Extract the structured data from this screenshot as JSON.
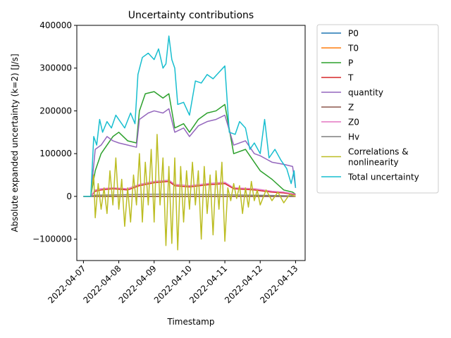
{
  "chart_data": {
    "type": "line",
    "title": "Uncertainty contributions",
    "xlabel": "Timestamp",
    "ylabel": "Absolute expanded uncertainty (k=2) [J/s]",
    "x_range": [
      "2022-04-06T19:30",
      "2022-04-13T06:30"
    ],
    "ylim": [
      -150000,
      400000
    ],
    "x_ticks": [
      "2022-04-07",
      "2022-04-08",
      "2022-04-09",
      "2022-04-10",
      "2022-04-11",
      "2022-04-12",
      "2022-04-13"
    ],
    "y_ticks": [
      -100000,
      0,
      100000,
      200000,
      300000,
      400000
    ],
    "y_tick_labels": [
      "−100000",
      "0",
      "100000",
      "200000",
      "300000",
      "400000"
    ],
    "grid": false,
    "legend_position": "outside-right",
    "series": [
      {
        "name": "P0",
        "color": "#1f77b4",
        "points": [
          [
            "2022-04-07T00:00",
            0
          ],
          [
            "2022-04-13T00:00",
            0
          ]
        ]
      },
      {
        "name": "T0",
        "color": "#ff7f0e",
        "points": [
          [
            "2022-04-07T00:00",
            0
          ],
          [
            "2022-04-13T00:00",
            0
          ]
        ]
      },
      {
        "name": "P",
        "color": "#2ca02c",
        "points": [
          [
            "2022-04-07T00:00",
            0
          ],
          [
            "2022-04-07T05:00",
            0
          ],
          [
            "2022-04-07T08:00",
            60000
          ],
          [
            "2022-04-07T12:00",
            100000
          ],
          [
            "2022-04-07T16:00",
            120000
          ],
          [
            "2022-04-07T20:00",
            140000
          ],
          [
            "2022-04-08T00:00",
            150000
          ],
          [
            "2022-04-08T06:00",
            130000
          ],
          [
            "2022-04-08T12:00",
            125000
          ],
          [
            "2022-04-08T14:00",
            200000
          ],
          [
            "2022-04-08T18:00",
            240000
          ],
          [
            "2022-04-09T00:00",
            245000
          ],
          [
            "2022-04-09T06:00",
            230000
          ],
          [
            "2022-04-09T10:00",
            240000
          ],
          [
            "2022-04-09T14:00",
            160000
          ],
          [
            "2022-04-09T20:00",
            170000
          ],
          [
            "2022-04-10T00:00",
            150000
          ],
          [
            "2022-04-10T06:00",
            180000
          ],
          [
            "2022-04-10T12:00",
            195000
          ],
          [
            "2022-04-10T18:00",
            200000
          ],
          [
            "2022-04-11T00:00",
            215000
          ],
          [
            "2022-04-11T06:00",
            100000
          ],
          [
            "2022-04-11T14:00",
            110000
          ],
          [
            "2022-04-11T20:00",
            80000
          ],
          [
            "2022-04-12T00:00",
            60000
          ],
          [
            "2022-04-12T08:00",
            40000
          ],
          [
            "2022-04-12T16:00",
            15000
          ],
          [
            "2022-04-12T22:00",
            10000
          ],
          [
            "2022-04-13T00:00",
            5000
          ]
        ]
      },
      {
        "name": "T",
        "color": "#d62728",
        "points": [
          [
            "2022-04-07T00:00",
            0
          ],
          [
            "2022-04-07T05:00",
            0
          ],
          [
            "2022-04-07T08:00",
            12000
          ],
          [
            "2022-04-07T12:00",
            15000
          ],
          [
            "2022-04-07T20:00",
            18000
          ],
          [
            "2022-04-08T06:00",
            15000
          ],
          [
            "2022-04-08T14:00",
            25000
          ],
          [
            "2022-04-09T00:00",
            32000
          ],
          [
            "2022-04-09T10:00",
            35000
          ],
          [
            "2022-04-09T14:00",
            25000
          ],
          [
            "2022-04-10T00:00",
            22000
          ],
          [
            "2022-04-10T12:00",
            27000
          ],
          [
            "2022-04-11T00:00",
            30000
          ],
          [
            "2022-04-11T06:00",
            18000
          ],
          [
            "2022-04-11T20:00",
            15000
          ],
          [
            "2022-04-12T08:00",
            10000
          ],
          [
            "2022-04-12T16:00",
            8000
          ],
          [
            "2022-04-13T00:00",
            4000
          ]
        ]
      },
      {
        "name": "quantity",
        "color": "#9467bd",
        "points": [
          [
            "2022-04-07T00:00",
            0
          ],
          [
            "2022-04-07T05:00",
            0
          ],
          [
            "2022-04-07T08:00",
            110000
          ],
          [
            "2022-04-07T12:00",
            120000
          ],
          [
            "2022-04-07T16:00",
            140000
          ],
          [
            "2022-04-07T20:00",
            130000
          ],
          [
            "2022-04-08T00:00",
            125000
          ],
          [
            "2022-04-08T06:00",
            120000
          ],
          [
            "2022-04-08T12:00",
            115000
          ],
          [
            "2022-04-08T14:00",
            180000
          ],
          [
            "2022-04-08T20:00",
            195000
          ],
          [
            "2022-04-09T00:00",
            200000
          ],
          [
            "2022-04-09T06:00",
            195000
          ],
          [
            "2022-04-09T10:00",
            205000
          ],
          [
            "2022-04-09T14:00",
            150000
          ],
          [
            "2022-04-09T20:00",
            160000
          ],
          [
            "2022-04-10T00:00",
            140000
          ],
          [
            "2022-04-10T06:00",
            165000
          ],
          [
            "2022-04-10T12:00",
            175000
          ],
          [
            "2022-04-10T18:00",
            180000
          ],
          [
            "2022-04-11T00:00",
            190000
          ],
          [
            "2022-04-11T06:00",
            120000
          ],
          [
            "2022-04-11T14:00",
            130000
          ],
          [
            "2022-04-11T20:00",
            100000
          ],
          [
            "2022-04-12T00:00",
            95000
          ],
          [
            "2022-04-12T08:00",
            80000
          ],
          [
            "2022-04-12T16:00",
            75000
          ],
          [
            "2022-04-12T22:00",
            70000
          ],
          [
            "2022-04-13T00:00",
            20000
          ]
        ]
      },
      {
        "name": "Z",
        "color": "#8c564b",
        "points": [
          [
            "2022-04-07T00:00",
            0
          ],
          [
            "2022-04-13T00:00",
            0
          ]
        ]
      },
      {
        "name": "Z0",
        "color": "#e377c2",
        "points": [
          [
            "2022-04-07T00:00",
            0
          ],
          [
            "2022-04-07T05:00",
            0
          ],
          [
            "2022-04-07T08:00",
            15000
          ],
          [
            "2022-04-07T12:00",
            18000
          ],
          [
            "2022-04-07T20:00",
            20000
          ],
          [
            "2022-04-08T06:00",
            18000
          ],
          [
            "2022-04-08T14:00",
            28000
          ],
          [
            "2022-04-09T00:00",
            35000
          ],
          [
            "2022-04-09T10:00",
            38000
          ],
          [
            "2022-04-09T14:00",
            28000
          ],
          [
            "2022-04-10T00:00",
            25000
          ],
          [
            "2022-04-10T12:00",
            30000
          ],
          [
            "2022-04-11T00:00",
            33000
          ],
          [
            "2022-04-11T06:00",
            20000
          ],
          [
            "2022-04-11T20:00",
            18000
          ],
          [
            "2022-04-12T08:00",
            12000
          ],
          [
            "2022-04-12T16:00",
            10000
          ],
          [
            "2022-04-13T00:00",
            5000
          ]
        ]
      },
      {
        "name": "Hv",
        "color": "#7f7f7f",
        "points": [
          [
            "2022-04-07T00:00",
            0
          ],
          [
            "2022-04-07T05:00",
            0
          ],
          [
            "2022-04-07T08:00",
            3000
          ],
          [
            "2022-04-09T00:00",
            5000
          ],
          [
            "2022-04-11T00:00",
            4000
          ],
          [
            "2022-04-12T12:00",
            2000
          ],
          [
            "2022-04-13T00:00",
            1000
          ]
        ]
      },
      {
        "name": "Correlations &\nnonlinearity",
        "color": "#bcbd22",
        "points": [
          [
            "2022-04-07T00:00",
            0
          ],
          [
            "2022-04-07T05:00",
            0
          ],
          [
            "2022-04-07T07:00",
            50000
          ],
          [
            "2022-04-07T08:00",
            -50000
          ],
          [
            "2022-04-07T10:00",
            30000
          ],
          [
            "2022-04-07T12:00",
            -30000
          ],
          [
            "2022-04-07T14:00",
            20000
          ],
          [
            "2022-04-07T16:00",
            -40000
          ],
          [
            "2022-04-07T18:00",
            60000
          ],
          [
            "2022-04-07T20:00",
            -20000
          ],
          [
            "2022-04-07T22:00",
            90000
          ],
          [
            "2022-04-08T00:00",
            -30000
          ],
          [
            "2022-04-08T02:00",
            40000
          ],
          [
            "2022-04-08T04:00",
            -70000
          ],
          [
            "2022-04-08T06:00",
            20000
          ],
          [
            "2022-04-08T08:00",
            -60000
          ],
          [
            "2022-04-08T10:00",
            50000
          ],
          [
            "2022-04-08T12:00",
            -20000
          ],
          [
            "2022-04-08T14:00",
            100000
          ],
          [
            "2022-04-08T16:00",
            -60000
          ],
          [
            "2022-04-08T18:00",
            80000
          ],
          [
            "2022-04-08T20:00",
            -20000
          ],
          [
            "2022-04-08T22:00",
            110000
          ],
          [
            "2022-04-09T00:00",
            -60000
          ],
          [
            "2022-04-09T02:00",
            145000
          ],
          [
            "2022-04-09T04:00",
            -20000
          ],
          [
            "2022-04-09T06:00",
            90000
          ],
          [
            "2022-04-09T08:00",
            -115000
          ],
          [
            "2022-04-09T10:00",
            70000
          ],
          [
            "2022-04-09T12:00",
            -110000
          ],
          [
            "2022-04-09T14:00",
            90000
          ],
          [
            "2022-04-09T16:00",
            -125000
          ],
          [
            "2022-04-09T18:00",
            70000
          ],
          [
            "2022-04-09T20:00",
            -60000
          ],
          [
            "2022-04-09T22:00",
            60000
          ],
          [
            "2022-04-10T00:00",
            -30000
          ],
          [
            "2022-04-10T02:00",
            80000
          ],
          [
            "2022-04-10T04:00",
            -20000
          ],
          [
            "2022-04-10T06:00",
            60000
          ],
          [
            "2022-04-10T08:00",
            -100000
          ],
          [
            "2022-04-10T10:00",
            70000
          ],
          [
            "2022-04-10T12:00",
            -40000
          ],
          [
            "2022-04-10T14:00",
            50000
          ],
          [
            "2022-04-10T16:00",
            -90000
          ],
          [
            "2022-04-10T18:00",
            60000
          ],
          [
            "2022-04-10T20:00",
            -30000
          ],
          [
            "2022-04-10T22:00",
            80000
          ],
          [
            "2022-04-11T00:00",
            -105000
          ],
          [
            "2022-04-11T02:00",
            20000
          ],
          [
            "2022-04-11T04:00",
            -10000
          ],
          [
            "2022-04-11T06:00",
            30000
          ],
          [
            "2022-04-11T08:00",
            -5000
          ],
          [
            "2022-04-11T10:00",
            25000
          ],
          [
            "2022-04-11T12:00",
            -40000
          ],
          [
            "2022-04-11T14:00",
            20000
          ],
          [
            "2022-04-11T16:00",
            -25000
          ],
          [
            "2022-04-11T18:00",
            35000
          ],
          [
            "2022-04-11T20:00",
            -10000
          ],
          [
            "2022-04-11T22:00",
            15000
          ],
          [
            "2022-04-12T00:00",
            -20000
          ],
          [
            "2022-04-12T04:00",
            15000
          ],
          [
            "2022-04-12T08:00",
            -10000
          ],
          [
            "2022-04-12T12:00",
            10000
          ],
          [
            "2022-04-12T16:00",
            -15000
          ],
          [
            "2022-04-12T20:00",
            5000
          ],
          [
            "2022-04-13T00:00",
            0
          ]
        ]
      },
      {
        "name": "Total uncertainty",
        "color": "#17becf",
        "points": [
          [
            "2022-04-07T00:00",
            0
          ],
          [
            "2022-04-07T05:00",
            0
          ],
          [
            "2022-04-07T07:00",
            140000
          ],
          [
            "2022-04-07T09:00",
            120000
          ],
          [
            "2022-04-07T11:00",
            180000
          ],
          [
            "2022-04-07T13:00",
            150000
          ],
          [
            "2022-04-07T16:00",
            175000
          ],
          [
            "2022-04-07T19:00",
            160000
          ],
          [
            "2022-04-07T22:00",
            190000
          ],
          [
            "2022-04-08T01:00",
            175000
          ],
          [
            "2022-04-08T04:00",
            160000
          ],
          [
            "2022-04-08T08:00",
            195000
          ],
          [
            "2022-04-08T11:00",
            170000
          ],
          [
            "2022-04-08T13:00",
            285000
          ],
          [
            "2022-04-08T16:00",
            325000
          ],
          [
            "2022-04-08T20:00",
            335000
          ],
          [
            "2022-04-09T00:00",
            320000
          ],
          [
            "2022-04-09T03:00",
            345000
          ],
          [
            "2022-04-09T06:00",
            300000
          ],
          [
            "2022-04-09T08:00",
            310000
          ],
          [
            "2022-04-09T10:00",
            375000
          ],
          [
            "2022-04-09T12:00",
            320000
          ],
          [
            "2022-04-09T14:00",
            300000
          ],
          [
            "2022-04-09T16:00",
            215000
          ],
          [
            "2022-04-09T20:00",
            220000
          ],
          [
            "2022-04-10T00:00",
            190000
          ],
          [
            "2022-04-10T04:00",
            270000
          ],
          [
            "2022-04-10T08:00",
            265000
          ],
          [
            "2022-04-10T12:00",
            285000
          ],
          [
            "2022-04-10T16:00",
            275000
          ],
          [
            "2022-04-10T20:00",
            290000
          ],
          [
            "2022-04-11T00:00",
            305000
          ],
          [
            "2022-04-11T03:00",
            150000
          ],
          [
            "2022-04-11T07:00",
            145000
          ],
          [
            "2022-04-11T10:00",
            175000
          ],
          [
            "2022-04-11T14:00",
            160000
          ],
          [
            "2022-04-11T17:00",
            110000
          ],
          [
            "2022-04-11T20:00",
            125000
          ],
          [
            "2022-04-12T00:00",
            100000
          ],
          [
            "2022-04-12T03:00",
            180000
          ],
          [
            "2022-04-12T06:00",
            90000
          ],
          [
            "2022-04-12T10:00",
            110000
          ],
          [
            "2022-04-12T14:00",
            85000
          ],
          [
            "2022-04-12T18:00",
            65000
          ],
          [
            "2022-04-12T21:00",
            30000
          ],
          [
            "2022-04-12T23:00",
            60000
          ],
          [
            "2022-04-13T00:00",
            20000
          ]
        ]
      }
    ]
  }
}
